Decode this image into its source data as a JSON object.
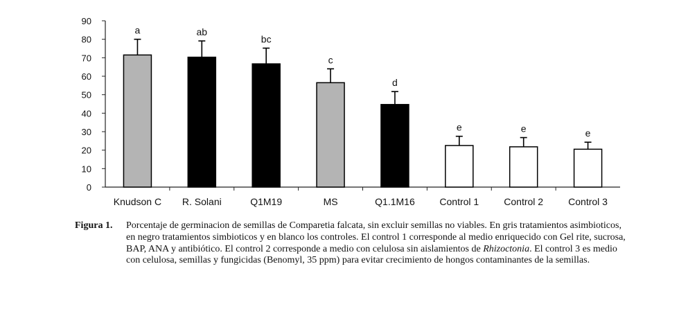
{
  "chart_data": {
    "type": "bar",
    "title": "",
    "xlabel": "",
    "ylabel": "",
    "ylim": [
      0,
      90
    ],
    "yticks": [
      0,
      10,
      20,
      30,
      40,
      50,
      60,
      70,
      80,
      90
    ],
    "categories": [
      "Knudson C",
      "R. Solani",
      "Q1M19",
      "MS",
      "Q1.1M16",
      "Control 1",
      "Control 2",
      "Control 3"
    ],
    "values": [
      71.5,
      70.3,
      66.7,
      56.5,
      44.7,
      22.5,
      21.8,
      20.5
    ],
    "errors": [
      8.5,
      8.8,
      8.5,
      7.5,
      7.0,
      5.0,
      5.0,
      3.8
    ],
    "letters": [
      "a",
      "ab",
      "bc",
      "c",
      "d",
      "e",
      "e",
      "e"
    ],
    "groups": [
      "asymbiotic",
      "symbiotic",
      "symbiotic",
      "asymbiotic",
      "symbiotic",
      "control",
      "control",
      "control"
    ],
    "colors": {
      "asymbiotic": "#b4b4b4",
      "symbiotic": "#000000",
      "control": "#ffffff"
    },
    "grid": false,
    "legend": "none"
  },
  "caption": {
    "label": "Figura 1.",
    "text_before": "Porcentaje de germinacion de semillas de Comparetia falcata, sin excluir semillas no viables. En gris tratamientos asimbioticos, en negro tratamientos simbioticos y en blanco los controles. El control 1 corresponde al medio enriquecido con Gel rite, sucrosa, BAP, ANA y antibiótico. El control 2 corresponde a medio con celulosa sin aislamientos de",
    "italic": "Rhizoctonia",
    "text_after": ". El control 3 es medio con celulosa, semillas y fungicidas (Benomyl, 35 ppm) para evitar crecimiento de hongos contaminantes de la semillas."
  }
}
